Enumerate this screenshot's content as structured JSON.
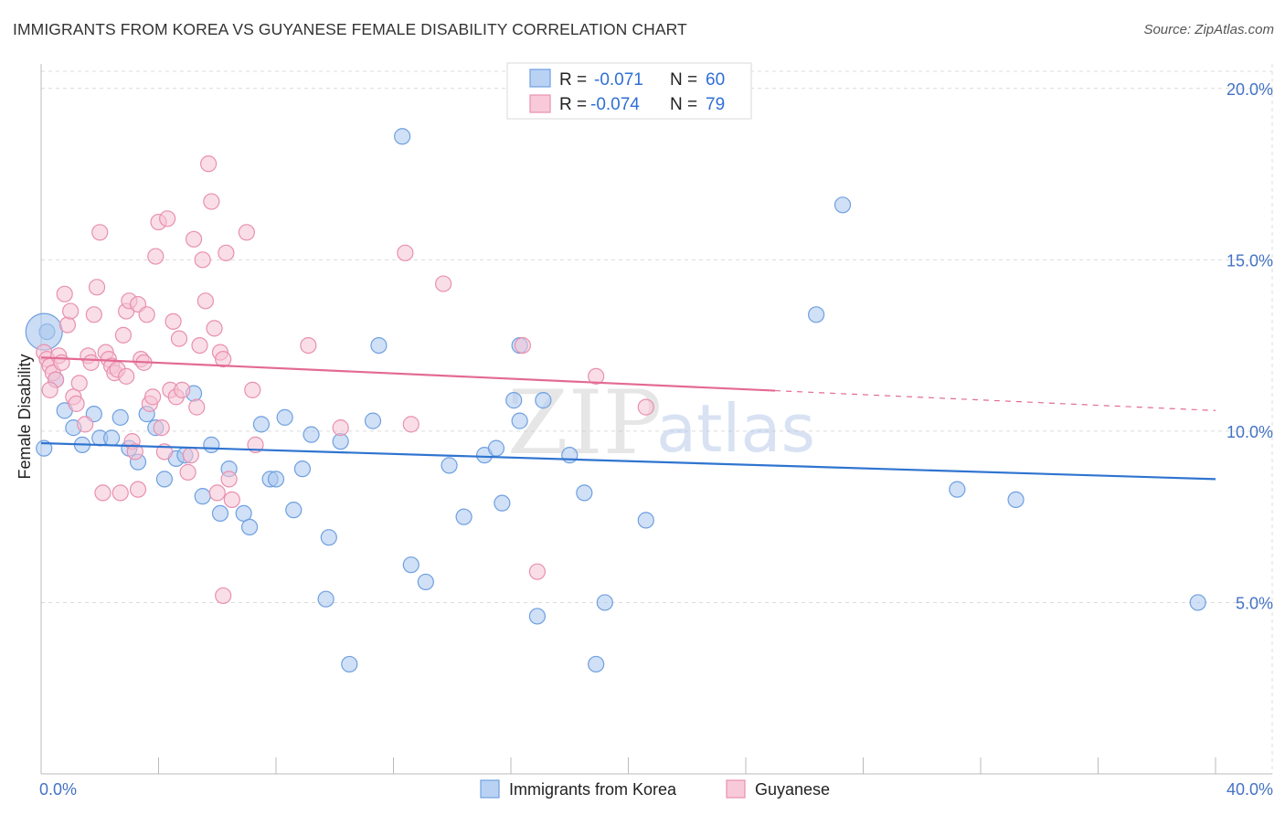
{
  "header": {
    "title": "IMMIGRANTS FROM KOREA VS GUYANESE FEMALE DISABILITY CORRELATION CHART",
    "source": "Source: ZipAtlas.com"
  },
  "watermark": {
    "zip": "ZIP",
    "atlas": "atlas"
  },
  "chart_data": {
    "type": "scatter",
    "title": "IMMIGRANTS FROM KOREA VS GUYANESE FEMALE DISABILITY CORRELATION CHART",
    "xlabel": "",
    "ylabel": "Female Disability",
    "xlim": [
      0,
      40
    ],
    "ylim": [
      0,
      20.5
    ],
    "x_tick_labels": [
      "0.0%",
      "40.0%"
    ],
    "y_ticks": [
      5,
      10,
      15,
      20
    ],
    "y_tick_labels": [
      "5.0%",
      "10.0%",
      "15.0%",
      "20.0%"
    ],
    "grid": true,
    "legend_position": "top-center",
    "series": [
      {
        "name": "Immigrants from Korea",
        "color": "#6fa0e0",
        "fill": "#a9c6ef",
        "line_color": "#2f74d0",
        "R": "-0.071",
        "N": "60",
        "trend": {
          "x": [
            0,
            40
          ],
          "y": [
            9.65,
            8.6
          ],
          "dashed_from": null
        },
        "points": [
          [
            0.2,
            12.9
          ],
          [
            0.5,
            11.5
          ],
          [
            0.8,
            10.6
          ],
          [
            1.1,
            10.1
          ],
          [
            1.4,
            9.6
          ],
          [
            1.8,
            10.5
          ],
          [
            2.0,
            9.8
          ],
          [
            2.4,
            9.8
          ],
          [
            2.7,
            10.4
          ],
          [
            3.0,
            9.5
          ],
          [
            3.3,
            9.1
          ],
          [
            3.6,
            10.5
          ],
          [
            3.9,
            10.1
          ],
          [
            4.2,
            8.6
          ],
          [
            4.6,
            9.2
          ],
          [
            4.9,
            9.3
          ],
          [
            5.2,
            11.1
          ],
          [
            5.5,
            8.1
          ],
          [
            5.8,
            9.6
          ],
          [
            6.1,
            7.6
          ],
          [
            6.4,
            8.9
          ],
          [
            6.9,
            7.6
          ],
          [
            7.1,
            7.2
          ],
          [
            7.5,
            10.2
          ],
          [
            7.8,
            8.6
          ],
          [
            8.0,
            8.6
          ],
          [
            8.3,
            10.4
          ],
          [
            8.6,
            7.7
          ],
          [
            8.9,
            8.9
          ],
          [
            9.2,
            9.9
          ],
          [
            9.7,
            5.1
          ],
          [
            9.8,
            6.9
          ],
          [
            10.2,
            9.7
          ],
          [
            10.5,
            3.2
          ],
          [
            11.3,
            10.3
          ],
          [
            11.5,
            12.5
          ],
          [
            12.3,
            18.6
          ],
          [
            12.6,
            6.1
          ],
          [
            13.1,
            5.6
          ],
          [
            13.9,
            9.0
          ],
          [
            14.4,
            7.5
          ],
          [
            15.1,
            9.3
          ],
          [
            15.5,
            9.5
          ],
          [
            15.7,
            7.9
          ],
          [
            16.3,
            12.5
          ],
          [
            16.1,
            10.9
          ],
          [
            16.3,
            10.3
          ],
          [
            16.9,
            4.6
          ],
          [
            17.1,
            10.9
          ],
          [
            18.0,
            9.3
          ],
          [
            18.5,
            8.2
          ],
          [
            18.9,
            3.2
          ],
          [
            19.2,
            5.0
          ],
          [
            20.6,
            7.4
          ],
          [
            27.3,
            16.6
          ],
          [
            26.4,
            13.4
          ],
          [
            31.2,
            8.3
          ],
          [
            33.2,
            8.0
          ],
          [
            39.4,
            5.0
          ],
          [
            0.1,
            9.5
          ]
        ],
        "bubble": [
          0.1,
          12.9
        ]
      },
      {
        "name": "Guyanese",
        "color": "#e890b0",
        "fill": "#f6c2d3",
        "line_color": "#e36a94",
        "R": "-0.074",
        "N": "79",
        "trend": {
          "x": [
            0,
            40
          ],
          "y": [
            12.15,
            10.6
          ],
          "dashed_from": 25
        },
        "points": [
          [
            0.1,
            12.3
          ],
          [
            0.2,
            12.1
          ],
          [
            0.3,
            11.9
          ],
          [
            0.4,
            11.7
          ],
          [
            0.5,
            11.5
          ],
          [
            0.6,
            12.2
          ],
          [
            0.7,
            12.0
          ],
          [
            0.8,
            14.0
          ],
          [
            0.9,
            13.1
          ],
          [
            1.0,
            13.5
          ],
          [
            1.1,
            11.0
          ],
          [
            1.2,
            10.8
          ],
          [
            1.3,
            11.4
          ],
          [
            1.5,
            10.2
          ],
          [
            1.6,
            12.2
          ],
          [
            1.7,
            12.0
          ],
          [
            1.8,
            13.4
          ],
          [
            1.9,
            14.2
          ],
          [
            2.0,
            15.8
          ],
          [
            2.2,
            12.3
          ],
          [
            2.3,
            12.1
          ],
          [
            2.4,
            11.9
          ],
          [
            2.5,
            11.7
          ],
          [
            2.6,
            11.8
          ],
          [
            2.1,
            8.2
          ],
          [
            2.7,
            8.2
          ],
          [
            2.8,
            12.8
          ],
          [
            2.9,
            13.5
          ],
          [
            3.0,
            13.8
          ],
          [
            3.1,
            9.7
          ],
          [
            3.2,
            9.4
          ],
          [
            3.3,
            13.7
          ],
          [
            3.4,
            12.1
          ],
          [
            3.5,
            12.0
          ],
          [
            3.6,
            13.4
          ],
          [
            3.7,
            10.8
          ],
          [
            3.8,
            11.0
          ],
          [
            3.9,
            15.1
          ],
          [
            4.0,
            16.1
          ],
          [
            4.1,
            10.1
          ],
          [
            4.2,
            9.4
          ],
          [
            4.3,
            16.2
          ],
          [
            4.4,
            11.2
          ],
          [
            4.5,
            13.2
          ],
          [
            4.6,
            11.0
          ],
          [
            4.7,
            12.7
          ],
          [
            4.8,
            11.2
          ],
          [
            5.0,
            8.8
          ],
          [
            5.1,
            9.3
          ],
          [
            5.2,
            15.6
          ],
          [
            5.3,
            10.7
          ],
          [
            5.4,
            12.5
          ],
          [
            5.5,
            15.0
          ],
          [
            5.6,
            13.8
          ],
          [
            5.7,
            17.8
          ],
          [
            5.8,
            16.7
          ],
          [
            5.9,
            13.0
          ],
          [
            6.0,
            8.2
          ],
          [
            6.1,
            12.3
          ],
          [
            6.2,
            12.1
          ],
          [
            6.3,
            15.2
          ],
          [
            6.4,
            8.6
          ],
          [
            6.5,
            8.0
          ],
          [
            6.2,
            5.2
          ],
          [
            7.0,
            15.8
          ],
          [
            7.2,
            11.2
          ],
          [
            7.3,
            9.6
          ],
          [
            9.1,
            12.5
          ],
          [
            10.2,
            10.1
          ],
          [
            12.4,
            15.2
          ],
          [
            12.6,
            10.2
          ],
          [
            13.7,
            14.3
          ],
          [
            16.4,
            12.5
          ],
          [
            16.9,
            5.9
          ],
          [
            18.9,
            11.6
          ],
          [
            20.6,
            10.7
          ],
          [
            3.3,
            8.3
          ],
          [
            2.9,
            11.6
          ],
          [
            0.3,
            11.2
          ]
        ]
      }
    ]
  },
  "legend": {
    "rows": [
      {
        "r_label": "R =",
        "r_value": "-0.071",
        "n_label": "N =",
        "n_value": "60"
      },
      {
        "r_label": "R =",
        "r_value": "-0.074",
        "n_label": "N =",
        "n_value": "79"
      }
    ]
  },
  "bottom_legend": {
    "items": [
      "Immigrants from Korea",
      "Guyanese"
    ]
  }
}
